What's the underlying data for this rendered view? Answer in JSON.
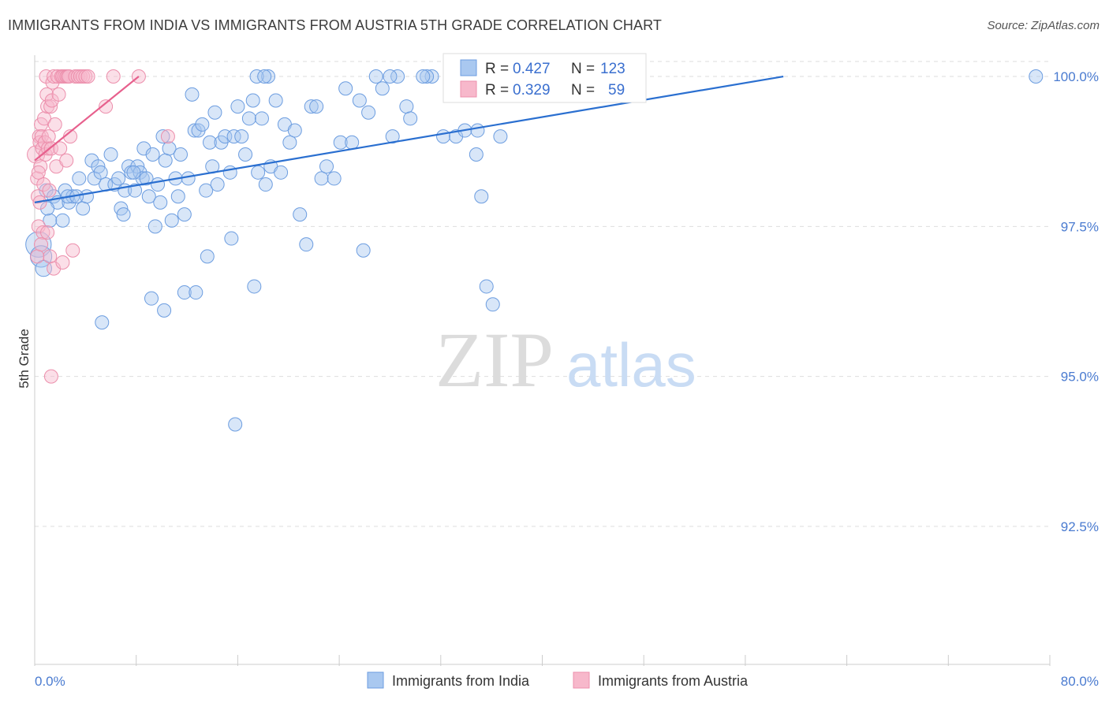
{
  "header": {
    "title": "IMMIGRANTS FROM INDIA VS IMMIGRANTS FROM AUSTRIA 5TH GRADE CORRELATION CHART",
    "source": "Source: ZipAtlas.com"
  },
  "watermark": {
    "part1": "ZIP",
    "part2": "atlas"
  },
  "stats": {
    "r_label": "R = ",
    "n_label": "N = ",
    "rows": [
      {
        "r": "0.427",
        "n": "123"
      },
      {
        "r": "0.329",
        "n": "59"
      }
    ]
  },
  "colors": {
    "india_fill": "#a9c8f0",
    "india_stroke": "#6c9de0",
    "india_line": "#2a6fd0",
    "austria_fill": "#f7b8cb",
    "austria_stroke": "#ec8fac",
    "austria_line": "#e7608d",
    "grid": "#dddddd",
    "axis_text": "#4a7bd0"
  },
  "chart_data": {
    "type": "scatter",
    "title": "IMMIGRANTS FROM INDIA VS IMMIGRANTS FROM AUSTRIA 5TH GRADE CORRELATION CHART",
    "xlabel": "",
    "ylabel": "5th Grade",
    "xlim": [
      0,
      80
    ],
    "ylim": [
      90.2,
      100.25
    ],
    "x_tick_labels": [
      "0.0%",
      "80.0%"
    ],
    "y_ticks": [
      92.5,
      95.0,
      97.5,
      100.0
    ],
    "y_tick_labels": [
      "92.5%",
      "95.0%",
      "97.5%",
      "100.0%"
    ],
    "legend": [
      "Immigrants from India",
      "Immigrants from Austria"
    ],
    "series": [
      {
        "name": "Immigrants from India",
        "R": 0.427,
        "N": 123,
        "trend": [
          [
            0,
            97.9
          ],
          [
            59,
            100.0
          ]
        ],
        "points": [
          [
            0.3,
            97.2,
            1.9
          ],
          [
            0.5,
            97.0,
            1.6
          ],
          [
            0.7,
            96.8,
            1.2
          ],
          [
            0.9,
            98.1,
            1
          ],
          [
            1.2,
            97.6,
            1
          ],
          [
            1.5,
            98.0,
            1
          ],
          [
            1.8,
            97.9,
            1
          ],
          [
            2.2,
            97.6,
            1
          ],
          [
            2.4,
            98.1,
            1
          ],
          [
            2.7,
            97.9,
            1
          ],
          [
            3.0,
            98.0,
            1
          ],
          [
            3.5,
            98.3,
            1
          ],
          [
            3.8,
            97.8,
            1
          ],
          [
            4.1,
            98.0,
            1
          ],
          [
            4.5,
            98.6,
            1
          ],
          [
            4.7,
            98.3,
            1
          ],
          [
            5.0,
            98.5,
            1
          ],
          [
            5.2,
            98.4,
            1
          ],
          [
            5.6,
            98.2,
            1
          ],
          [
            6.0,
            98.7,
            1
          ],
          [
            6.3,
            98.2,
            1
          ],
          [
            6.6,
            98.3,
            1
          ],
          [
            6.8,
            97.8,
            1
          ],
          [
            7.0,
            97.7,
            1
          ],
          [
            7.1,
            98.1,
            1
          ],
          [
            7.4,
            98.5,
            1
          ],
          [
            7.6,
            98.4,
            1
          ],
          [
            7.9,
            98.1,
            1
          ],
          [
            8.1,
            98.5,
            1
          ],
          [
            8.3,
            98.4,
            1
          ],
          [
            8.5,
            98.3,
            1
          ],
          [
            8.6,
            98.8,
            1
          ],
          [
            8.8,
            98.3,
            1
          ],
          [
            9.0,
            98.0,
            1
          ],
          [
            9.3,
            98.7,
            1
          ],
          [
            9.5,
            97.5,
            1
          ],
          [
            9.7,
            98.2,
            1
          ],
          [
            9.9,
            97.9,
            1
          ],
          [
            10.1,
            99.0,
            1
          ],
          [
            10.3,
            98.6,
            1
          ],
          [
            10.6,
            98.8,
            1
          ],
          [
            10.8,
            97.6,
            1
          ],
          [
            11.1,
            98.3,
            1
          ],
          [
            11.3,
            98.0,
            1
          ],
          [
            11.5,
            98.7,
            1
          ],
          [
            11.8,
            97.7,
            1
          ],
          [
            12.1,
            98.3,
            1
          ],
          [
            12.4,
            99.7,
            1
          ],
          [
            12.6,
            99.1,
            1
          ],
          [
            12.9,
            99.1,
            1
          ],
          [
            13.2,
            99.2,
            1
          ],
          [
            13.5,
            98.1,
            1
          ],
          [
            13.8,
            98.9,
            1
          ],
          [
            14.0,
            98.5,
            1
          ],
          [
            14.2,
            99.4,
            1
          ],
          [
            14.4,
            98.2,
            1
          ],
          [
            14.7,
            98.9,
            1
          ],
          [
            15.0,
            99.0,
            1
          ],
          [
            15.4,
            98.4,
            1
          ],
          [
            15.7,
            99.0,
            1
          ],
          [
            16.0,
            99.5,
            1
          ],
          [
            16.3,
            99.0,
            1
          ],
          [
            16.6,
            98.7,
            1
          ],
          [
            16.9,
            99.3,
            1
          ],
          [
            17.2,
            99.6,
            1
          ],
          [
            17.6,
            98.4,
            1
          ],
          [
            17.9,
            99.3,
            1
          ],
          [
            18.2,
            98.2,
            1
          ],
          [
            18.4,
            100.0,
            1
          ],
          [
            18.6,
            98.5,
            1
          ],
          [
            19.0,
            99.6,
            1
          ],
          [
            19.4,
            98.4,
            1
          ],
          [
            19.7,
            99.2,
            1
          ],
          [
            20.1,
            98.9,
            1
          ],
          [
            20.5,
            99.1,
            1
          ],
          [
            20.9,
            97.7,
            1
          ],
          [
            21.4,
            97.2,
            1
          ],
          [
            21.8,
            99.5,
            1
          ],
          [
            22.2,
            99.5,
            1
          ],
          [
            22.6,
            98.3,
            1
          ],
          [
            23.0,
            98.5,
            1
          ],
          [
            23.6,
            98.3,
            1
          ],
          [
            24.1,
            98.9,
            1
          ],
          [
            24.5,
            99.8,
            1
          ],
          [
            25.0,
            98.9,
            1
          ],
          [
            25.6,
            99.6,
            1
          ],
          [
            26.3,
            99.4,
            1
          ],
          [
            26.9,
            100.0,
            1
          ],
          [
            27.4,
            99.8,
            1
          ],
          [
            28.2,
            99.0,
            1
          ],
          [
            28.6,
            100.0,
            1
          ],
          [
            29.3,
            99.5,
            1
          ],
          [
            29.6,
            99.3,
            1
          ],
          [
            31.3,
            100.0,
            1
          ],
          [
            32.2,
            99.0,
            1
          ],
          [
            33.2,
            99.0,
            1
          ],
          [
            33.9,
            99.1,
            1
          ],
          [
            34.8,
            98.7,
            1
          ],
          [
            35.2,
            98.0,
            1
          ],
          [
            35.6,
            96.5,
            1
          ],
          [
            36.1,
            96.2,
            1
          ],
          [
            36.7,
            99.0,
            1
          ],
          [
            15.8,
            94.2,
            1
          ],
          [
            11.8,
            96.4,
            1
          ],
          [
            5.3,
            95.9,
            1
          ],
          [
            9.2,
            96.3,
            1
          ],
          [
            10.2,
            96.1,
            1
          ],
          [
            12.7,
            96.4,
            1
          ],
          [
            13.6,
            97.0,
            1
          ],
          [
            15.5,
            97.3,
            1
          ],
          [
            17.3,
            96.5,
            1
          ],
          [
            7.8,
            98.4,
            1
          ],
          [
            2.6,
            98.0,
            1
          ],
          [
            3.3,
            98.0,
            1
          ],
          [
            1.0,
            97.8,
            1
          ],
          [
            25.9,
            97.1,
            1
          ],
          [
            78.9,
            100.0,
            1
          ],
          [
            17.5,
            100.0,
            1
          ],
          [
            18.1,
            100.0,
            1
          ],
          [
            28.0,
            100.0,
            1
          ],
          [
            30.9,
            100.0,
            1
          ],
          [
            34.9,
            99.1,
            1
          ],
          [
            30.6,
            100.0,
            1
          ]
        ]
      },
      {
        "name": "Immigrants from Austria",
        "R": 0.329,
        "N": 59,
        "trend": [
          [
            0,
            98.6
          ],
          [
            8.2,
            100.0
          ]
        ],
        "points": [
          [
            0.1,
            98.7,
            1.3
          ],
          [
            0.2,
            98.3,
            1
          ],
          [
            0.25,
            98.0,
            1
          ],
          [
            0.3,
            97.5,
            1
          ],
          [
            0.35,
            99.0,
            1
          ],
          [
            0.4,
            98.9,
            1
          ],
          [
            0.45,
            98.5,
            1
          ],
          [
            0.5,
            99.2,
            1
          ],
          [
            0.55,
            99.0,
            1
          ],
          [
            0.6,
            98.8,
            1
          ],
          [
            0.65,
            97.4,
            1
          ],
          [
            0.7,
            98.2,
            1
          ],
          [
            0.75,
            99.3,
            1
          ],
          [
            0.8,
            98.9,
            1
          ],
          [
            0.85,
            98.7,
            1
          ],
          [
            0.9,
            100.0,
            1
          ],
          [
            0.95,
            99.7,
            1
          ],
          [
            1.0,
            99.5,
            1
          ],
          [
            1.05,
            98.8,
            1
          ],
          [
            1.1,
            99.0,
            1
          ],
          [
            1.15,
            98.1,
            1
          ],
          [
            1.2,
            97.0,
            1
          ],
          [
            1.25,
            99.5,
            1
          ],
          [
            1.3,
            98.8,
            1
          ],
          [
            1.35,
            99.6,
            1
          ],
          [
            1.4,
            99.9,
            1
          ],
          [
            1.5,
            100.0,
            1
          ],
          [
            1.6,
            99.2,
            1
          ],
          [
            1.7,
            98.5,
            1
          ],
          [
            1.8,
            100.0,
            1
          ],
          [
            1.9,
            99.7,
            1
          ],
          [
            2.0,
            98.8,
            1
          ],
          [
            2.1,
            100.0,
            1
          ],
          [
            2.2,
            100.0,
            1
          ],
          [
            2.35,
            100.0,
            1
          ],
          [
            2.5,
            100.0,
            1
          ],
          [
            2.6,
            100.0,
            1
          ],
          [
            2.7,
            100.0,
            1
          ],
          [
            2.8,
            99.0,
            1
          ],
          [
            3.0,
            97.1,
            1
          ],
          [
            3.2,
            100.0,
            1
          ],
          [
            3.4,
            100.0,
            1
          ],
          [
            3.6,
            100.0,
            1
          ],
          [
            3.8,
            100.0,
            1
          ],
          [
            4.0,
            100.0,
            1
          ],
          [
            4.2,
            100.0,
            1
          ],
          [
            5.6,
            99.5,
            1
          ],
          [
            6.2,
            100.0,
            1
          ],
          [
            8.2,
            100.0,
            1
          ],
          [
            10.5,
            99.0,
            1
          ],
          [
            1.3,
            95.0,
            1
          ],
          [
            1.5,
            96.8,
            1
          ],
          [
            2.2,
            96.9,
            1
          ],
          [
            0.2,
            97.0,
            1
          ],
          [
            0.3,
            98.4,
            1
          ],
          [
            0.4,
            97.9,
            1
          ],
          [
            0.5,
            97.2,
            1
          ],
          [
            1.0,
            97.4,
            1
          ],
          [
            2.5,
            98.6,
            1
          ]
        ]
      }
    ]
  }
}
